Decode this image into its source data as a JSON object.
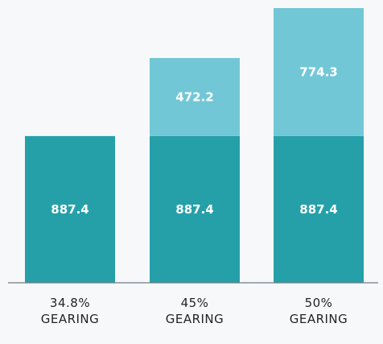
{
  "chart_data": {
    "type": "bar",
    "stacked": true,
    "categories": [
      [
        "34.8%",
        "GEARING"
      ],
      [
        "45%",
        "GEARING"
      ],
      [
        "50%",
        "GEARING"
      ]
    ],
    "series": [
      {
        "values": [
          887.4,
          887.4,
          887.4
        ],
        "color": "#25a0a9"
      },
      {
        "values": [
          0,
          472.2,
          774.3
        ],
        "color": "#72c7d6"
      }
    ],
    "ylim": [
      0,
      1661.7
    ],
    "grid": false,
    "legend": "none",
    "title": "",
    "xlabel": "",
    "ylabel": ""
  }
}
